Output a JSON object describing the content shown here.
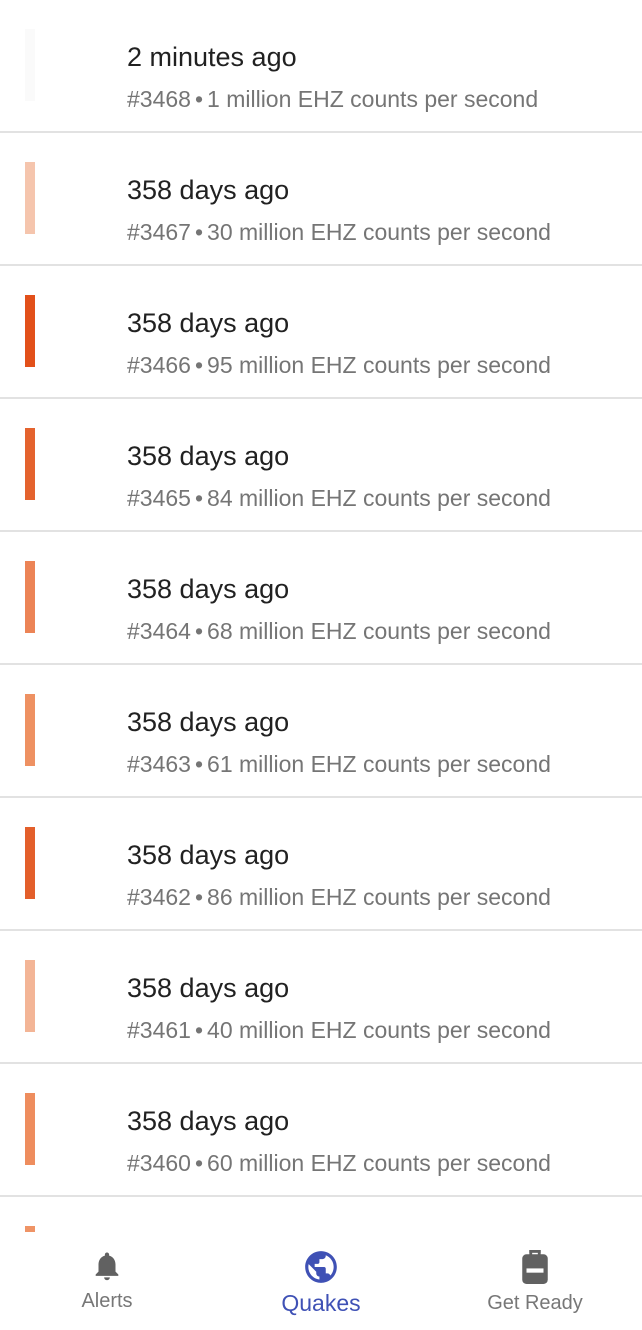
{
  "quakes": [
    {
      "title": "2 minutes ago",
      "id": "#3468",
      "separator": "•",
      "detail": "1 million EHZ counts per second",
      "color": "#fafafa"
    },
    {
      "title": "358 days ago",
      "id": "#3467",
      "separator": "•",
      "detail": "30 million EHZ counts per second",
      "color": "#f5c5ad"
    },
    {
      "title": "358 days ago",
      "id": "#3466",
      "separator": "•",
      "detail": "95 million EHZ counts per second",
      "color": "#e2501a"
    },
    {
      "title": "358 days ago",
      "id": "#3465",
      "separator": "•",
      "detail": "84 million EHZ counts per second",
      "color": "#e4632e"
    },
    {
      "title": "358 days ago",
      "id": "#3464",
      "separator": "•",
      "detail": "68 million EHZ counts per second",
      "color": "#ec8456"
    },
    {
      "title": "358 days ago",
      "id": "#3463",
      "separator": "•",
      "detail": "61 million EHZ counts per second",
      "color": "#ee9162"
    },
    {
      "title": "358 days ago",
      "id": "#3462",
      "separator": "•",
      "detail": "86 million EHZ counts per second",
      "color": "#e35f2b"
    },
    {
      "title": "358 days ago",
      "id": "#3461",
      "separator": "•",
      "detail": "40 million EHZ counts per second",
      "color": "#f3b596"
    },
    {
      "title": "358 days ago",
      "id": "#3460",
      "separator": "•",
      "detail": "60 million EHZ counts per second",
      "color": "#ee8d5e"
    },
    {
      "title": "",
      "id": "",
      "separator": "",
      "detail": "",
      "color": "#ef9466"
    }
  ],
  "nav": {
    "alerts": {
      "label": "Alerts",
      "icon": "bell-icon"
    },
    "quakes": {
      "label": "Quakes",
      "icon": "globe-icon"
    },
    "get_ready": {
      "label": "Get Ready",
      "icon": "backpack-icon"
    }
  },
  "colors": {
    "accent": "#3f51b5",
    "inactive": "#616161"
  }
}
